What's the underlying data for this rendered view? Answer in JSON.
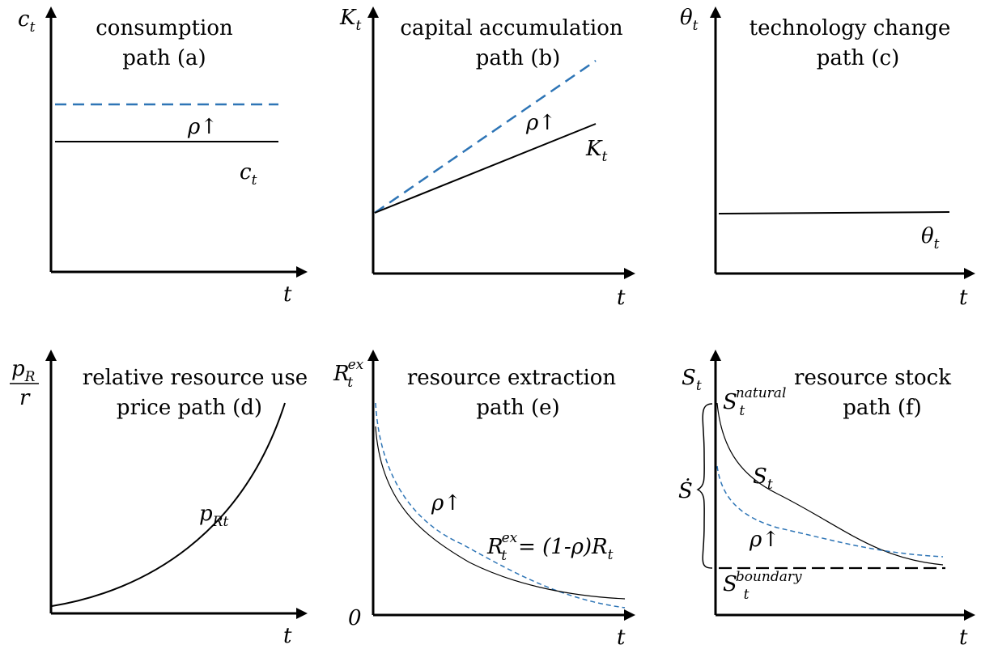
{
  "panels": {
    "a": {
      "title_line1": "consumption",
      "title_line2": "path (a)",
      "y_axis": "c",
      "y_axis_sub": "t",
      "x_axis": "t",
      "curve_label": "c",
      "curve_label_sub": "t",
      "shift_label": "ρ↑"
    },
    "b": {
      "title_line1": "capital accumulation",
      "title_line2": "path (b)",
      "y_axis": "K",
      "y_axis_sub": "t",
      "x_axis": "t",
      "curve_label": "K",
      "curve_label_sub": "t",
      "shift_label": "ρ↑"
    },
    "c": {
      "title_line1": "technology change",
      "title_line2": "path (c)",
      "y_axis": "θ",
      "y_axis_sub": "t",
      "x_axis": "t",
      "curve_label": "θ",
      "curve_label_sub": "t"
    },
    "d": {
      "title_line1": "relative resource use",
      "title_line2": "price path  (d)",
      "y_axis_num": "p",
      "y_axis_num_sub": "R",
      "y_axis_den": "r",
      "x_axis": "t",
      "curve_label": "p",
      "curve_label_sub": "Rt"
    },
    "e": {
      "title_line1": "resource extraction",
      "title_line2": "path (e)",
      "y_axis": "R",
      "y_axis_sup": "ex",
      "y_axis_sub": "t",
      "x_axis": "t",
      "origin": "0",
      "shift_label": "ρ↑",
      "formula_lhs": "R",
      "formula_sup": "ex",
      "formula_sub": "t",
      "formula_eq": "= ",
      "formula_mid": "(1-ρ)",
      "formula_rhs": "R",
      "formula_rhs_sub": "t"
    },
    "f": {
      "title_line1": "resource stock",
      "title_line2": "path (f)",
      "y_axis": "S",
      "y_axis_sub": "t",
      "x_axis": "t",
      "natural_label": "S",
      "natural_sup": "natural",
      "natural_sub": "t",
      "curve_label": "S",
      "curve_label_sub": "t",
      "sdot_label": "Ṡ",
      "shift_label": "ρ↑",
      "boundary_label": "S",
      "boundary_sup": "boundary",
      "boundary_sub": "t"
    }
  }
}
